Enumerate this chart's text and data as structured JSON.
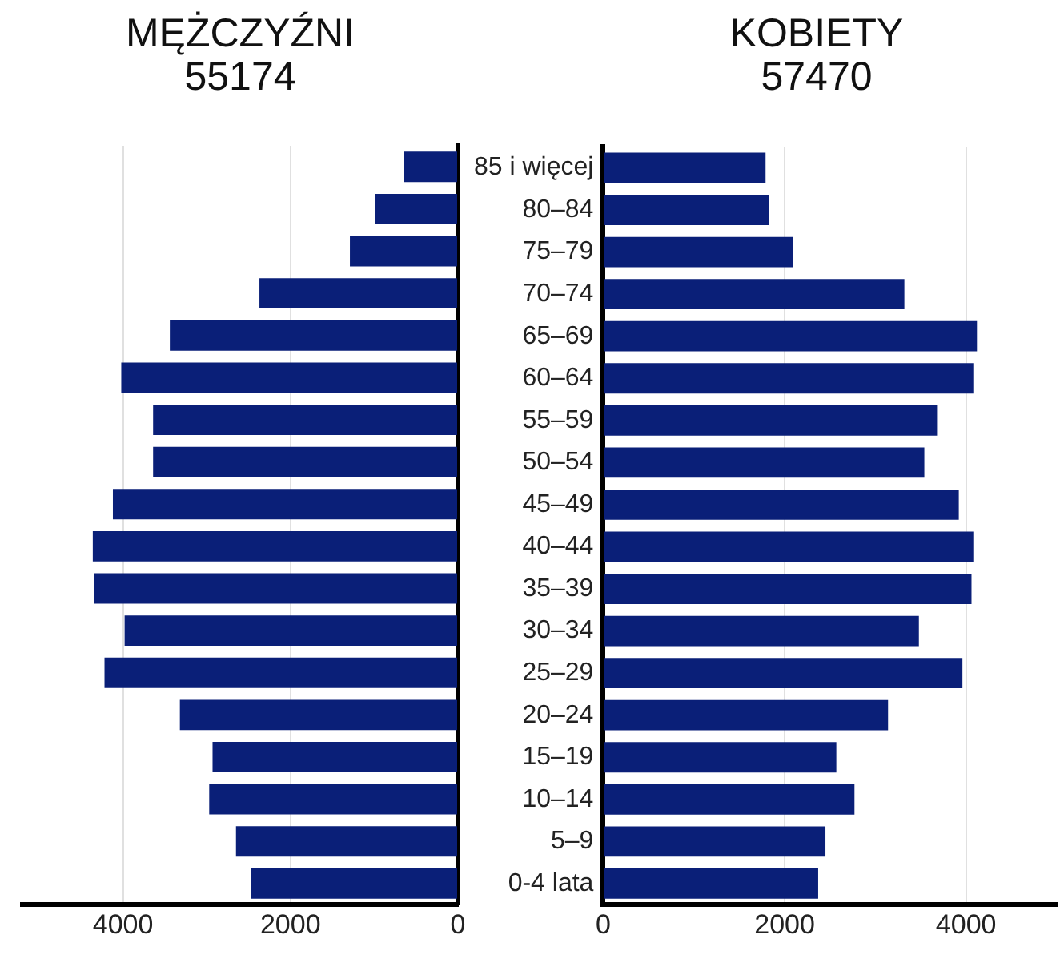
{
  "chart_data": [
    {
      "type": "bar",
      "orientation": "horizontal",
      "title": "MĘŻCZYŹNI",
      "subtitle": "55174",
      "categories": [
        null,
        null,
        null,
        null,
        null,
        null,
        null,
        null,
        null,
        null,
        null,
        null,
        null,
        null,
        null,
        null,
        null,
        null
      ],
      "values": [
        650,
        990,
        1290,
        2370,
        3440,
        4020,
        3640,
        3640,
        4120,
        4360,
        4340,
        3980,
        4220,
        3320,
        2930,
        2970,
        2650,
        2470
      ],
      "color": "#0a1f78",
      "xlim": [
        5200,
        0
      ],
      "xticks": [
        4000,
        2000,
        0
      ],
      "grid": "x",
      "tick_labels": "x"
    },
    {
      "type": "bar",
      "orientation": "horizontal",
      "title": "KOBIETY",
      "subtitle": "57470",
      "categories": [
        "85 i więcej",
        "80–84",
        "75–79",
        "70–74",
        "65–69",
        "60–64",
        "55–59",
        "50–54",
        "45–49",
        "40–44",
        "35–39",
        "30–34",
        "25–29",
        "20–24",
        "15–19",
        "10–14",
        "5–9",
        "0-4 lata"
      ],
      "values": [
        1790,
        1830,
        2090,
        3320,
        4120,
        4080,
        3680,
        3540,
        3920,
        4080,
        4060,
        3480,
        3960,
        3140,
        2570,
        2770,
        2450,
        2370
      ],
      "color": "#0a1f78",
      "xlim": [
        0,
        5000
      ],
      "xticks": [
        0,
        2000,
        4000
      ],
      "grid": "x"
    }
  ]
}
